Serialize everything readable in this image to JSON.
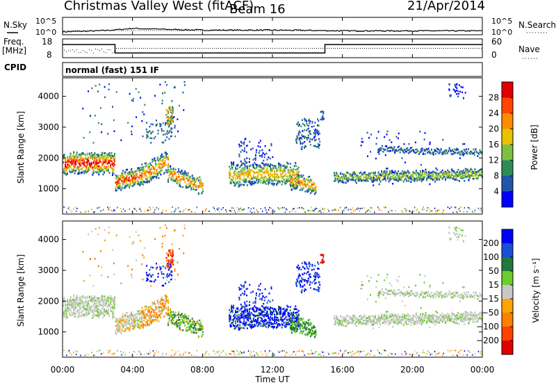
{
  "header": {
    "site_title": "Christmas Valley West (fitACF)",
    "beam": "Beam 16",
    "date": "21/Apr/2014"
  },
  "aux": {
    "nsky_label": "N.Sky",
    "nsearch_label": "N.Search",
    "freq_label_1": "Freq.",
    "freq_label_2": "[MHz]",
    "nave_label": "Nave",
    "cpid_label": "CPID",
    "cpid_value": "normal (fast) 151 IF",
    "noise_left_ticks": [
      "10^5",
      "10^0"
    ],
    "noise_right_ticks": [
      "10^5",
      "10^0"
    ],
    "freq_left_ticks": [
      "18",
      "8"
    ],
    "freq_right_ticks": [
      "60",
      "0"
    ]
  },
  "chart_data": [
    {
      "type": "line",
      "name": "noise",
      "series": [
        {
          "name": "N.Sky",
          "x": [
            0,
            2,
            3,
            4,
            6,
            8,
            10,
            12,
            14,
            16,
            18,
            20,
            22,
            24
          ],
          "values": [
            1.2,
            1.6,
            2.0,
            2.6,
            2.2,
            1.9,
            1.9,
            1.9,
            1.8,
            1.6,
            1.6,
            1.6,
            1.6,
            1.6
          ]
        }
      ]
    },
    {
      "type": "line",
      "name": "frequency",
      "series": [
        {
          "name": "Freq.",
          "x": [
            0,
            3,
            3,
            15,
            15,
            24
          ],
          "values": [
            15,
            15,
            10.5,
            10.5,
            15,
            15
          ]
        }
      ],
      "ylim": [
        8,
        18
      ]
    },
    {
      "type": "heatmap",
      "name": "power",
      "ylabel": "Slant Range [km]",
      "ylim": [
        180,
        4600
      ],
      "yticks": [
        "1000",
        "2000",
        "3000",
        "4000"
      ],
      "colorbar_label": "Power [dB]",
      "colorbar_ticks": [
        "4",
        "8",
        "12",
        "16",
        "20",
        "24",
        "28"
      ],
      "colors": [
        "#0000ff",
        "#2255aa",
        "#2e8b57",
        "#7cc142",
        "#e8c200",
        "#ff8c00",
        "#ff4500",
        "#e00000"
      ]
    },
    {
      "type": "heatmap",
      "name": "velocity",
      "ylabel": "Slant Range [km]",
      "ylim": [
        180,
        4600
      ],
      "yticks": [
        "1000",
        "2000",
        "3000",
        "4000"
      ],
      "colorbar_label": "Velocity [m s⁻¹]",
      "colorbar_ticks": [
        "200",
        "100",
        "50",
        "15",
        "−15",
        "−50",
        "−100",
        "−200"
      ],
      "colors": [
        "#0000ff",
        "#1a4fd6",
        "#227a3a",
        "#6ccc2e",
        "#c8c8c8",
        "#ffa500",
        "#ff7f00",
        "#ff4000",
        "#e00000"
      ]
    }
  ],
  "xaxis": {
    "label": "Time UT",
    "ticks": [
      "00:00",
      "04:00",
      "08:00",
      "12:00",
      "16:00",
      "20:00",
      "00:00"
    ],
    "range": [
      0,
      24
    ]
  }
}
